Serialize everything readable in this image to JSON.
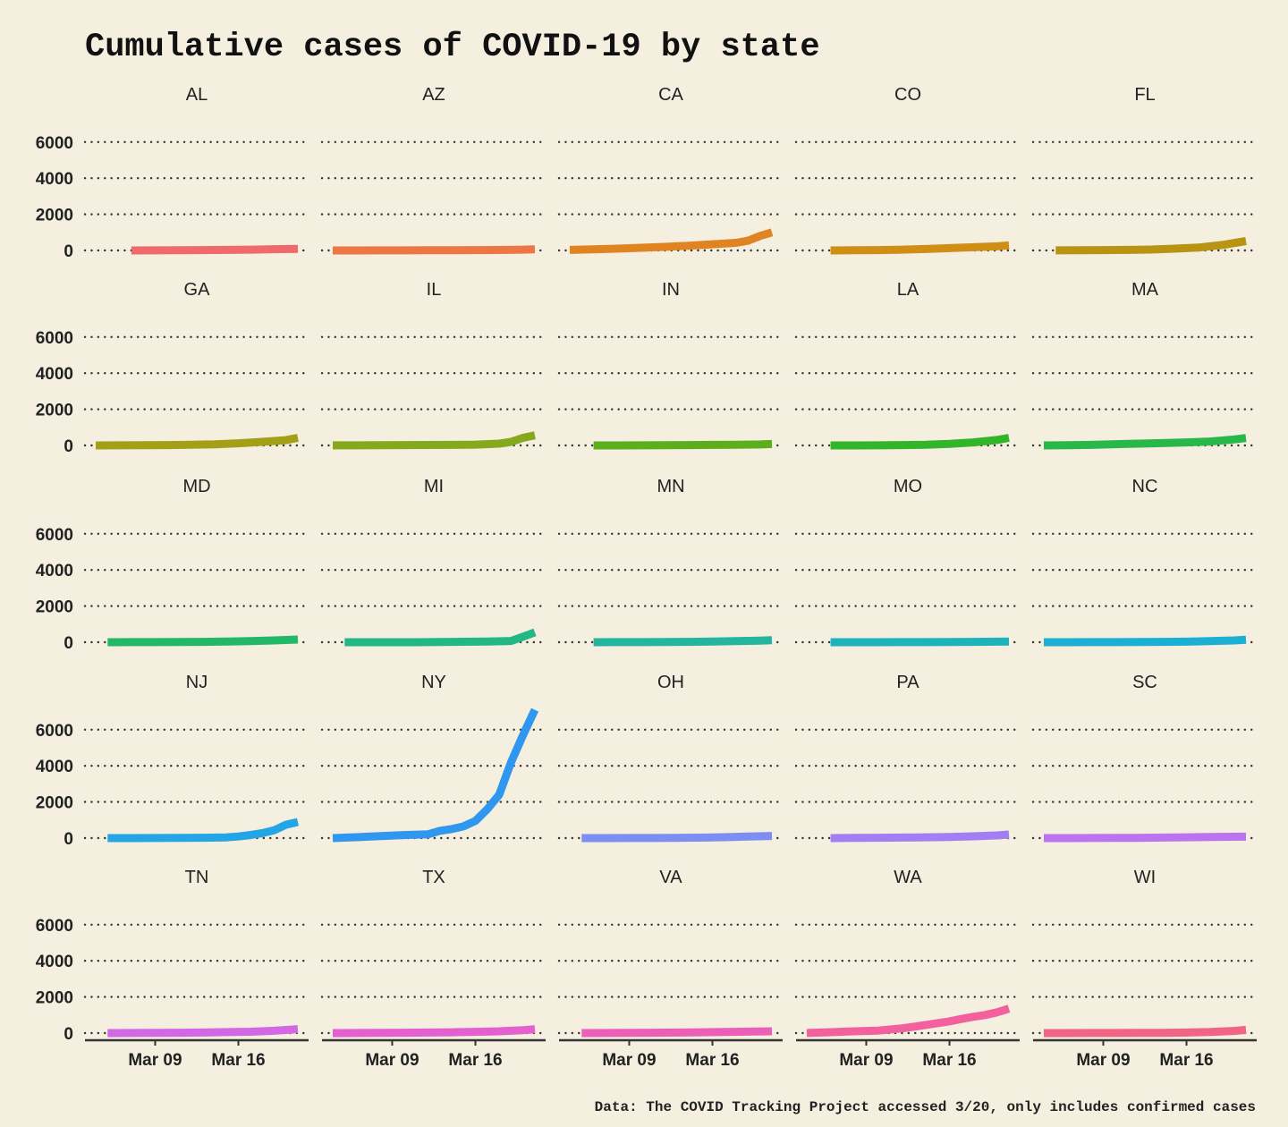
{
  "chart_data": {
    "type": "line",
    "title": "Cumulative cases of COVID-19 by state",
    "caption": "Data: The COVID Tracking Project accessed 3/20, only includes confirmed cases",
    "xlabel": "",
    "ylabel": "",
    "ylim": [
      0,
      7000
    ],
    "y_ticks": [
      0,
      2000,
      4000,
      6000
    ],
    "y_tick_labels": [
      "0",
      "2000",
      "4000",
      "6000"
    ],
    "x_domain_days": [
      0,
      17
    ],
    "x_ticks": [
      5,
      12
    ],
    "x_tick_labels": [
      "Mar 09",
      "Mar 16"
    ],
    "grid": "horizontal dotted",
    "legend": "none",
    "panels": [
      {
        "state": "AL",
        "color": "#f0696b",
        "x": [
          3,
          5,
          7,
          9,
          11,
          13,
          15,
          17
        ],
        "values": [
          0,
          5,
          12,
          20,
          30,
          46,
          68,
          90
        ]
      },
      {
        "state": "AZ",
        "color": "#ec7745",
        "x": [
          0,
          2,
          4,
          6,
          8,
          10,
          12,
          14,
          16,
          17
        ],
        "values": [
          1,
          2,
          3,
          5,
          9,
          13,
          20,
          27,
          44,
          65
        ]
      },
      {
        "state": "CA",
        "color": "#e08421",
        "x": [
          0,
          2,
          4,
          6,
          8,
          10,
          12,
          14,
          15,
          16,
          17
        ],
        "values": [
          30,
          60,
          100,
          150,
          200,
          260,
          340,
          420,
          540,
          800,
          1000
        ]
      },
      {
        "state": "CO",
        "color": "#cf8f15",
        "x": [
          2,
          4,
          6,
          8,
          10,
          12,
          14,
          16,
          17
        ],
        "values": [
          2,
          10,
          20,
          45,
          80,
          130,
          180,
          230,
          280
        ]
      },
      {
        "state": "FL",
        "color": "#b99312",
        "x": [
          1,
          3,
          5,
          7,
          9,
          11,
          13,
          15,
          17
        ],
        "values": [
          5,
          10,
          18,
          28,
          50,
          100,
          160,
          300,
          520
        ]
      },
      {
        "state": "GA",
        "color": "#a3a018",
        "x": [
          0,
          2,
          4,
          6,
          8,
          10,
          12,
          14,
          16,
          17
        ],
        "values": [
          2,
          5,
          10,
          20,
          35,
          60,
          120,
          200,
          290,
          420
        ]
      },
      {
        "state": "IL",
        "color": "#86a81c",
        "x": [
          0,
          2,
          4,
          6,
          8,
          10,
          12,
          14,
          15,
          16,
          17
        ],
        "values": [
          6,
          7,
          12,
          18,
          25,
          32,
          46,
          100,
          200,
          420,
          560
        ]
      },
      {
        "state": "IN",
        "color": "#5cae1d",
        "x": [
          2,
          4,
          6,
          8,
          10,
          12,
          14,
          16,
          17
        ],
        "values": [
          0,
          2,
          6,
          12,
          20,
          30,
          40,
          56,
          79
        ]
      },
      {
        "state": "LA",
        "color": "#33b52a",
        "x": [
          2,
          4,
          6,
          8,
          10,
          12,
          14,
          16,
          17
        ],
        "values": [
          0,
          1,
          5,
          20,
          40,
          90,
          170,
          300,
          420
        ]
      },
      {
        "state": "MA",
        "color": "#28b84a",
        "x": [
          0,
          2,
          4,
          6,
          8,
          10,
          12,
          14,
          16,
          17
        ],
        "values": [
          1,
          10,
          30,
          70,
          100,
          130,
          170,
          220,
          330,
          410
        ]
      },
      {
        "state": "MD",
        "color": "#23b768",
        "x": [
          1,
          3,
          5,
          7,
          9,
          11,
          13,
          15,
          17
        ],
        "values": [
          0,
          3,
          6,
          10,
          20,
          35,
          60,
          100,
          150
        ]
      },
      {
        "state": "MI",
        "color": "#23b786",
        "x": [
          1,
          3,
          5,
          7,
          9,
          11,
          13,
          15,
          16,
          17
        ],
        "values": [
          0,
          0,
          0,
          2,
          10,
          25,
          40,
          70,
          300,
          550
        ]
      },
      {
        "state": "MN",
        "color": "#24b59f",
        "x": [
          2,
          4,
          6,
          8,
          10,
          12,
          14,
          16,
          17
        ],
        "values": [
          1,
          3,
          5,
          10,
          20,
          40,
          60,
          90,
          115
        ]
      },
      {
        "state": "MO",
        "color": "#1eb3bb",
        "x": [
          2,
          4,
          6,
          8,
          10,
          12,
          14,
          16,
          17
        ],
        "values": [
          0,
          1,
          2,
          4,
          6,
          10,
          18,
          30,
          40
        ]
      },
      {
        "state": "NC",
        "color": "#1cafd4",
        "x": [
          0,
          2,
          4,
          6,
          8,
          10,
          12,
          14,
          16,
          17
        ],
        "values": [
          1,
          2,
          3,
          7,
          12,
          20,
          30,
          60,
          100,
          140
        ]
      },
      {
        "state": "NJ",
        "color": "#24a6e6",
        "x": [
          1,
          3,
          5,
          7,
          9,
          11,
          12,
          13,
          14,
          15,
          16,
          17
        ],
        "values": [
          0,
          2,
          4,
          10,
          20,
          40,
          90,
          170,
          270,
          430,
          740,
          890
        ]
      },
      {
        "state": "NY",
        "color": "#2f97f0",
        "x": [
          0,
          2,
          4,
          6,
          8,
          9,
          10,
          11,
          12,
          13,
          14,
          15,
          16,
          17
        ],
        "values": [
          0,
          50,
          110,
          170,
          210,
          400,
          500,
          650,
          950,
          1600,
          2400,
          4200,
          5700,
          7100
        ]
      },
      {
        "state": "OH",
        "color": "#7c8ef2",
        "x": [
          1,
          3,
          5,
          7,
          9,
          11,
          13,
          15,
          17
        ],
        "values": [
          0,
          0,
          3,
          5,
          13,
          26,
          50,
          88,
          120
        ]
      },
      {
        "state": "PA",
        "color": "#a17ff2",
        "x": [
          2,
          4,
          6,
          8,
          10,
          12,
          14,
          16,
          17
        ],
        "values": [
          0,
          10,
          20,
          30,
          45,
          66,
          100,
          150,
          200
        ]
      },
      {
        "state": "SC",
        "color": "#bc73ef",
        "x": [
          0,
          2,
          4,
          6,
          8,
          10,
          12,
          14,
          16,
          17
        ],
        "values": [
          0,
          2,
          5,
          9,
          13,
          28,
          47,
          60,
          75,
          81
        ]
      },
      {
        "state": "TN",
        "color": "#d368e4",
        "x": [
          1,
          3,
          5,
          7,
          9,
          11,
          13,
          15,
          17
        ],
        "values": [
          0,
          5,
          10,
          20,
          30,
          52,
          74,
          130,
          220
        ]
      },
      {
        "state": "TX",
        "color": "#e45fd0",
        "x": [
          0,
          2,
          4,
          6,
          8,
          10,
          12,
          14,
          16,
          17
        ],
        "values": [
          1,
          5,
          10,
          20,
          30,
          45,
          70,
          100,
          160,
          220
        ]
      },
      {
        "state": "VA",
        "color": "#ec5fb8",
        "x": [
          1,
          3,
          5,
          7,
          9,
          11,
          13,
          15,
          17
        ],
        "values": [
          0,
          5,
          10,
          20,
          30,
          45,
          60,
          80,
          100
        ]
      },
      {
        "state": "WA",
        "color": "#f2619d",
        "x": [
          0,
          2,
          4,
          6,
          7,
          8,
          9,
          10,
          11,
          12,
          13,
          14,
          15,
          16,
          17
        ],
        "values": [
          5,
          50,
          100,
          140,
          200,
          260,
          350,
          450,
          550,
          650,
          780,
          900,
          1000,
          1150,
          1350
        ]
      },
      {
        "state": "WI",
        "color": "#f06584",
        "x": [
          0,
          2,
          4,
          6,
          8,
          10,
          12,
          14,
          16,
          17
        ],
        "values": [
          1,
          2,
          3,
          5,
          8,
          15,
          30,
          60,
          120,
          180
        ]
      }
    ]
  }
}
